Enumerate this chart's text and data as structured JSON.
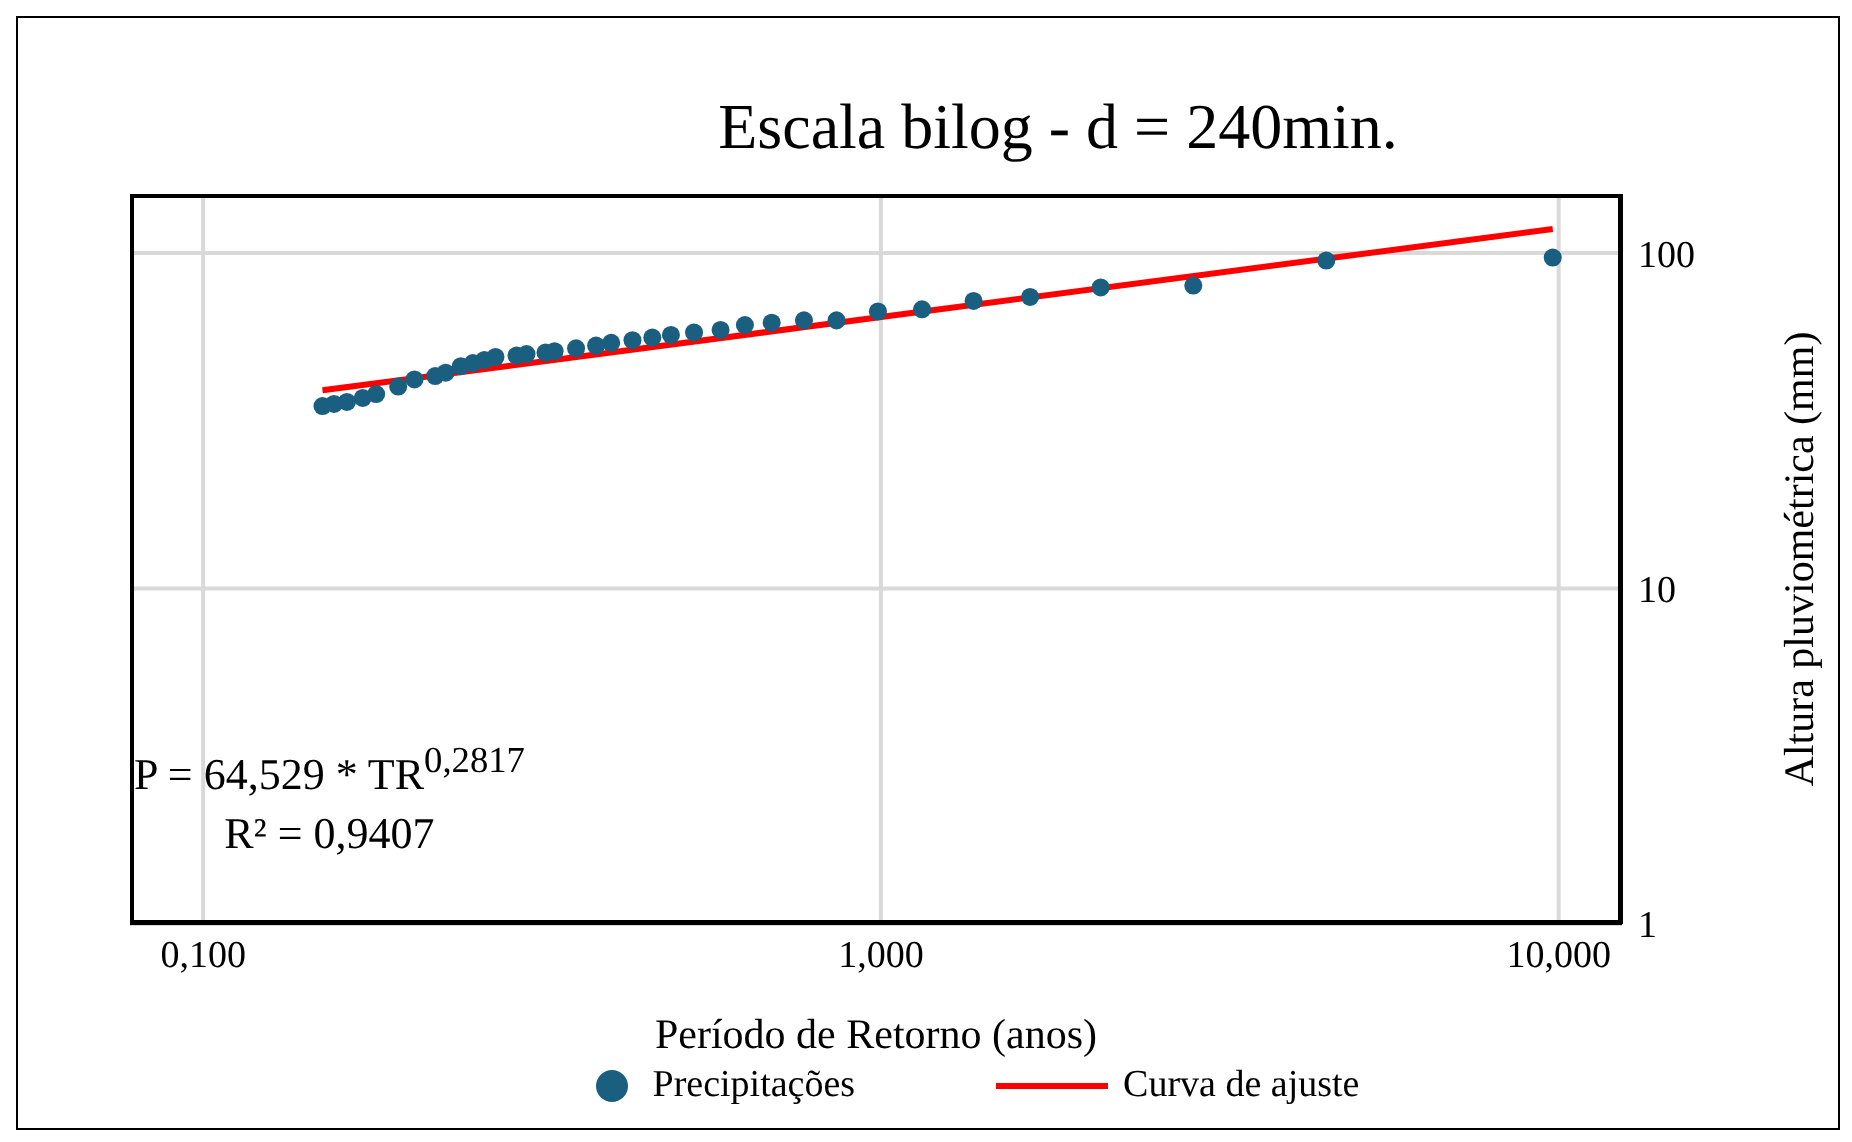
{
  "chart_data": {
    "type": "scatter",
    "title": "Escala bilog - d = 240min.",
    "xlabel": "Período de Retorno (anos)",
    "ylabel": "Altura pluviométrica (mm)",
    "log": "xy",
    "grid": true,
    "legend": "bottom",
    "xlim": [
      0.078,
      12.4
    ],
    "xticks": [
      {
        "value": 0.1,
        "label": "0,100"
      },
      {
        "value": 1,
        "label": "1,000"
      },
      {
        "value": 10,
        "label": "10,000"
      }
    ],
    "ylim": [
      1,
      150
    ],
    "yticks": [
      1,
      10,
      100
    ],
    "annotations": [
      "P = 64,529 * TR$^{0,2817}$",
      "R² = 0,9407"
    ],
    "series": [
      {
        "name": "Precipitações",
        "marker": "circle",
        "color": "#1a5f80",
        "x": [
          0.15,
          0.156,
          0.163,
          0.172,
          0.18,
          0.194,
          0.205,
          0.22,
          0.228,
          0.24,
          0.25,
          0.26,
          0.27,
          0.29,
          0.3,
          0.32,
          0.33,
          0.355,
          0.38,
          0.4,
          0.43,
          0.46,
          0.49,
          0.53,
          0.58,
          0.63,
          0.69,
          0.77,
          0.86,
          0.99,
          1.15,
          1.37,
          1.66,
          2.11,
          2.89,
          4.54,
          9.8
        ],
        "values": [
          35,
          35.5,
          36,
          37,
          38,
          40,
          42,
          43,
          44,
          46,
          47,
          48,
          49,
          49.5,
          50,
          50.5,
          51,
          52,
          53,
          54,
          55,
          56,
          57,
          58,
          59,
          61,
          62,
          63,
          63,
          67,
          68,
          72,
          74,
          79,
          80,
          95,
          97
        ]
      },
      {
        "name": "Curva de ajuste",
        "type": "line",
        "color": "#ff0000",
        "x": [
          0.15,
          9.8
        ],
        "values": [
          39,
          118
        ]
      }
    ]
  }
}
